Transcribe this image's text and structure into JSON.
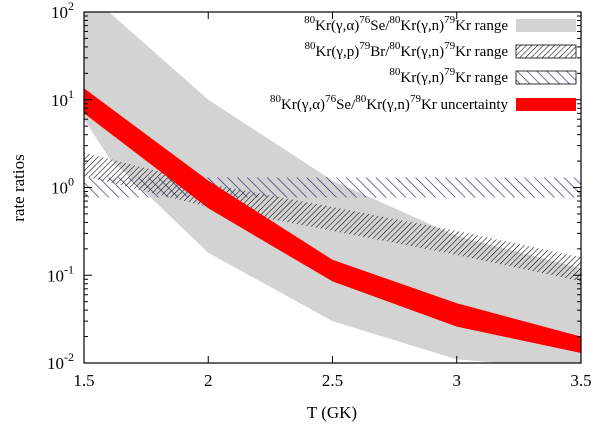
{
  "chart_data": {
    "type": "area",
    "xlabel": "T (GK)",
    "ylabel": "rate ratios",
    "xlim": [
      1.5,
      3.5
    ],
    "ylim": [
      0.01,
      100
    ],
    "yscale": "log",
    "grid": false,
    "legend_placement": "top-right",
    "x_ticks": [
      {
        "value": 1.5,
        "label": "1.5"
      },
      {
        "value": 2,
        "label": "2"
      },
      {
        "value": 2.5,
        "label": "2.5"
      },
      {
        "value": 3,
        "label": "3"
      },
      {
        "value": 3.5,
        "label": "3.5"
      }
    ],
    "y_ticks": [
      {
        "value": 0.01,
        "base": "10",
        "exp": "-2"
      },
      {
        "value": 0.1,
        "base": "10",
        "exp": "-1"
      },
      {
        "value": 1,
        "base": "10",
        "exp": "0"
      },
      {
        "value": 10,
        "base": "10",
        "exp": "1"
      },
      {
        "value": 100,
        "base": "10",
        "exp": "2"
      }
    ],
    "series": [
      {
        "name": "80Kr(γ,α)76Se/80Kr(γ,n)79Kr range",
        "style": "fill-gray",
        "x": [
          1.5,
          1.6,
          2.0,
          2.5,
          3.0,
          3.5
        ],
        "lower": [
          6.0,
          2.2,
          0.18,
          0.03,
          0.011,
          0.0085
        ],
        "upper": [
          200,
          100,
          10,
          1.2,
          0.28,
          0.12
        ]
      },
      {
        "name": "80Kr(γ,p)79Br/80Kr(γ,n)79Kr range",
        "style": "hatch-black",
        "x": [
          1.5,
          2.0,
          2.5,
          3.0,
          3.5
        ],
        "lower": [
          1.35,
          0.6,
          0.32,
          0.17,
          0.085
        ],
        "upper": [
          2.5,
          1.1,
          0.6,
          0.32,
          0.16
        ]
      },
      {
        "name": "80Kr(γ,n)79Kr range",
        "style": "hatch-blue",
        "x": [
          1.5,
          3.5
        ],
        "lower": [
          0.77,
          0.77
        ],
        "upper": [
          1.3,
          1.3
        ]
      },
      {
        "name": "80Kr(γ,α)76Se/80Kr(γ,n)79Kr uncertainty",
        "style": "fill-red",
        "x": [
          1.5,
          2.0,
          2.5,
          3.0,
          3.5
        ],
        "lower": [
          7.0,
          0.58,
          0.085,
          0.026,
          0.013
        ],
        "upper": [
          13.5,
          1.2,
          0.15,
          0.048,
          0.02
        ]
      }
    ],
    "legend": [
      {
        "parts": [
          [
            "sup",
            "80"
          ],
          [
            "t",
            "Kr(γ,α)"
          ],
          [
            "sup",
            "76"
          ],
          [
            "t",
            "Se/"
          ],
          [
            "sup",
            "80"
          ],
          [
            "t",
            "Kr(γ,n)"
          ],
          [
            "sup",
            "79"
          ],
          [
            "t",
            "Kr range"
          ]
        ]
      },
      {
        "parts": [
          [
            "sup",
            "80"
          ],
          [
            "t",
            "Kr(γ,p)"
          ],
          [
            "sup",
            "79"
          ],
          [
            "t",
            "Br/"
          ],
          [
            "sup",
            "80"
          ],
          [
            "t",
            "Kr(γ,n)"
          ],
          [
            "sup",
            "79"
          ],
          [
            "t",
            "Kr range"
          ]
        ]
      },
      {
        "parts": [
          [
            "sup",
            "80"
          ],
          [
            "t",
            "Kr(γ,n)"
          ],
          [
            "sup",
            "79"
          ],
          [
            "t",
            "Kr range"
          ]
        ]
      },
      {
        "parts": [
          [
            "sup",
            "80"
          ],
          [
            "t",
            "Kr(γ,α)"
          ],
          [
            "sup",
            "76"
          ],
          [
            "t",
            "Se/"
          ],
          [
            "sup",
            "80"
          ],
          [
            "t",
            "Kr(γ,n)"
          ],
          [
            "sup",
            "79"
          ],
          [
            "t",
            "Kr uncertainty"
          ]
        ]
      }
    ],
    "colors": {
      "gray_band": "#d3d3d3",
      "red_band": "#ff0000",
      "black_hatch": "#000000",
      "blue_hatch": "#1a2a6c"
    }
  }
}
